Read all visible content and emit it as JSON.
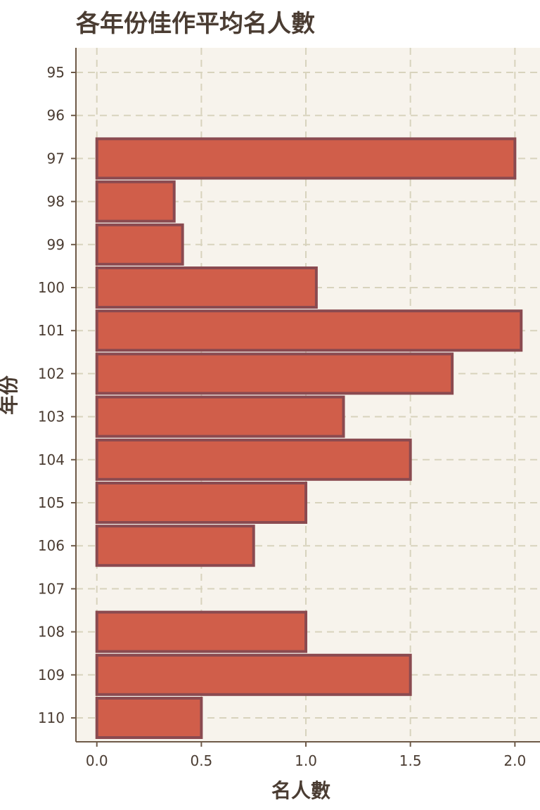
{
  "title": "各年份佳作平均名人數",
  "chart_data": {
    "type": "bar",
    "orientation": "horizontal",
    "xlabel": "名人數",
    "ylabel": "年份",
    "xlim": [
      -0.1,
      2.12
    ],
    "x_ticks": [
      "0.0",
      "0.5",
      "1.0",
      "1.5",
      "2.0"
    ],
    "grid": true,
    "categories": [
      "95",
      "96",
      "97",
      "98",
      "99",
      "100",
      "101",
      "102",
      "103",
      "104",
      "105",
      "106",
      "107",
      "108",
      "109",
      "110"
    ],
    "values": [
      0,
      0,
      2.0,
      0.37,
      0.41,
      1.05,
      2.03,
      1.7,
      1.18,
      1.5,
      1.0,
      0.75,
      0,
      1.0,
      1.5,
      0.5
    ],
    "colors": {
      "bar_fill": "#d05e4a",
      "bar_edge": "#8a4a50",
      "plot_background": "#f7f3ec",
      "grid": "#d8d3bd",
      "axis": "#6e5a48",
      "text": "#4a3c32"
    }
  }
}
